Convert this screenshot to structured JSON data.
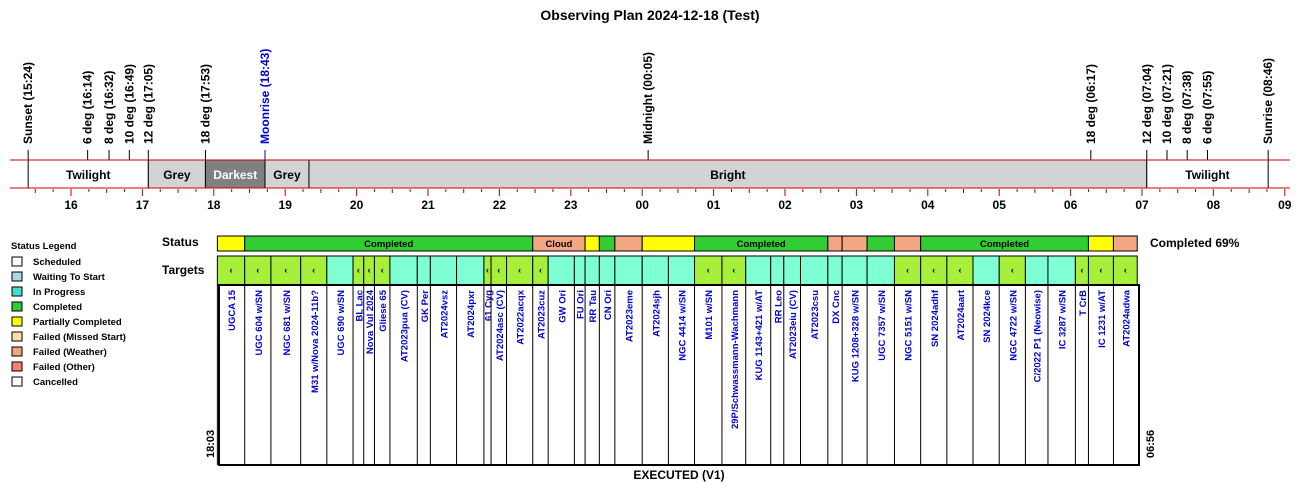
{
  "chart_data": {
    "type": "timeline",
    "title": "Observing Plan 2024-12-18 (Test)",
    "axis_hours": [
      "16",
      "17",
      "18",
      "19",
      "20",
      "21",
      "22",
      "23",
      "00",
      "01",
      "02",
      "03",
      "04",
      "05",
      "06",
      "07",
      "08",
      "09"
    ],
    "events": [
      {
        "label": "Sunset (15:24)",
        "time": 15.4,
        "color": "#000000"
      },
      {
        "label": "6 deg (16:14)",
        "time": 16.233,
        "color": "#000000"
      },
      {
        "label": "8 deg (16:32)",
        "time": 16.533,
        "color": "#000000"
      },
      {
        "label": "10 deg (16:49)",
        "time": 16.817,
        "color": "#000000"
      },
      {
        "label": "12 deg (17:05)",
        "time": 17.083,
        "color": "#000000"
      },
      {
        "label": "18 deg (17:53)",
        "time": 17.883,
        "color": "#000000"
      },
      {
        "label": "Moonrise (18:43)",
        "time": 18.717,
        "color": "#0000cc"
      },
      {
        "label": "Midnight (00:05)",
        "time": 24.083,
        "color": "#000000"
      },
      {
        "label": "18 deg (06:17)",
        "time": 30.283,
        "color": "#000000"
      },
      {
        "label": "12 deg (07:04)",
        "time": 31.067,
        "color": "#000000"
      },
      {
        "label": "10 deg (07:21)",
        "time": 31.35,
        "color": "#000000"
      },
      {
        "label": "8 deg (07:38)",
        "time": 31.633,
        "color": "#000000"
      },
      {
        "label": "6 deg (07:55)",
        "time": 31.917,
        "color": "#000000"
      },
      {
        "label": "Sunrise (08:46)",
        "time": 32.767,
        "color": "#000000"
      }
    ],
    "sky_bands": [
      {
        "label": "Twilight",
        "start": 15.4,
        "end": 17.083,
        "color": "#ffffff",
        "text_color": "#000000"
      },
      {
        "label": "Grey",
        "start": 17.083,
        "end": 17.883,
        "color": "#d3d3d3",
        "text_color": "#000000"
      },
      {
        "label": "Darkest",
        "start": 17.883,
        "end": 18.717,
        "color": "#808080",
        "text_color": "#ffffff"
      },
      {
        "label": "Grey",
        "start": 18.717,
        "end": 19.333,
        "color": "#d3d3d3",
        "text_color": "#000000"
      },
      {
        "label": "Bright",
        "start": 19.333,
        "end": 31.067,
        "color": "#d3d3d3",
        "text_color": "#000000"
      },
      {
        "label": "Twilight",
        "start": 31.067,
        "end": 32.767,
        "color": "#ffffff",
        "text_color": "#000000"
      }
    ],
    "row_labels": {
      "status": "Status",
      "targets": "Targets"
    },
    "completed_summary": "Completed 69%",
    "status_segments": [
      {
        "label": "",
        "start": 18.05,
        "end": 18.433,
        "status": "Partially Completed"
      },
      {
        "label": "Completed",
        "start": 18.433,
        "end": 22.467,
        "status": "Completed"
      },
      {
        "label": "Cloud",
        "start": 22.467,
        "end": 23.2,
        "status": "Failed (Weather)"
      },
      {
        "label": "",
        "start": 23.2,
        "end": 23.4,
        "status": "Partially Completed"
      },
      {
        "label": "",
        "start": 23.4,
        "end": 23.617,
        "status": "Completed"
      },
      {
        "label": "",
        "start": 23.617,
        "end": 24.0,
        "status": "Failed (Weather)"
      },
      {
        "label": "",
        "start": 24.0,
        "end": 24.733,
        "status": "Partially Completed"
      },
      {
        "label": "Completed",
        "start": 24.733,
        "end": 26.6,
        "status": "Completed"
      },
      {
        "label": "",
        "start": 26.6,
        "end": 26.8,
        "status": "Failed (Weather)"
      },
      {
        "label": "",
        "start": 26.8,
        "end": 27.15,
        "status": "Failed (Weather)"
      },
      {
        "label": "",
        "start": 27.15,
        "end": 27.533,
        "status": "Completed"
      },
      {
        "label": "",
        "start": 27.533,
        "end": 27.9,
        "status": "Failed (Weather)"
      },
      {
        "label": "Completed",
        "start": 27.9,
        "end": 30.25,
        "status": "Completed"
      },
      {
        "label": "",
        "start": 30.25,
        "end": 30.6,
        "status": "Partially Completed"
      },
      {
        "label": "",
        "start": 30.6,
        "end": 30.933,
        "status": "Failed (Weather)"
      }
    ],
    "targets": [
      {
        "name": "UGCA 15",
        "start": 18.05,
        "end": 18.433,
        "status": "Completed"
      },
      {
        "name": "UGC 604 w/SN",
        "start": 18.433,
        "end": 18.8,
        "status": "Completed"
      },
      {
        "name": "NGC 681 w/SN",
        "start": 18.8,
        "end": 19.217,
        "status": "Completed"
      },
      {
        "name": "M31 w/Nova 2024-11b?",
        "start": 19.217,
        "end": 19.583,
        "status": "Completed"
      },
      {
        "name": "UGC 690 w/SN",
        "start": 19.583,
        "end": 19.95,
        "status": "In Progress"
      },
      {
        "name": "BL Lac",
        "start": 19.95,
        "end": 20.1,
        "status": "Completed"
      },
      {
        "name": "Nova Vul 2024",
        "start": 20.1,
        "end": 20.25,
        "status": "Completed"
      },
      {
        "name": "Gliese 65",
        "start": 20.25,
        "end": 20.467,
        "status": "Completed"
      },
      {
        "name": "AT2023pua (CV)",
        "start": 20.467,
        "end": 20.85,
        "status": "In Progress"
      },
      {
        "name": "GK Per",
        "start": 20.85,
        "end": 21.033,
        "status": "In Progress"
      },
      {
        "name": "AT2024vsz",
        "start": 21.033,
        "end": 21.4,
        "status": "In Progress"
      },
      {
        "name": "AT2024pxr",
        "start": 21.4,
        "end": 21.783,
        "status": "In Progress"
      },
      {
        "name": "61 Cyg",
        "start": 21.783,
        "end": 21.883,
        "status": "Completed"
      },
      {
        "name": "AT2024asc (CV)",
        "start": 21.883,
        "end": 22.1,
        "status": "Completed"
      },
      {
        "name": "AT2022acqx",
        "start": 22.1,
        "end": 22.467,
        "status": "Completed"
      },
      {
        "name": "AT2023cuz",
        "start": 22.467,
        "end": 22.683,
        "status": "Completed"
      },
      {
        "name": "GW Ori",
        "start": 22.683,
        "end": 23.05,
        "status": "In Progress"
      },
      {
        "name": "FU Ori",
        "start": 23.05,
        "end": 23.2,
        "status": "In Progress"
      },
      {
        "name": "RR Tau",
        "start": 23.2,
        "end": 23.4,
        "status": "In Progress"
      },
      {
        "name": "CN Ori",
        "start": 23.4,
        "end": 23.617,
        "status": "In Progress"
      },
      {
        "name": "AT2023eme",
        "start": 23.617,
        "end": 24.0,
        "status": "In Progress"
      },
      {
        "name": "AT2024sjh",
        "start": 24.0,
        "end": 24.367,
        "status": "In Progress"
      },
      {
        "name": "NGC 4414 w/SN",
        "start": 24.367,
        "end": 24.733,
        "status": "In Progress"
      },
      {
        "name": "M101 w/SN",
        "start": 24.733,
        "end": 25.117,
        "status": "Completed"
      },
      {
        "name": "29P/Schwassmann-Wachmann",
        "start": 25.117,
        "end": 25.45,
        "status": "Completed"
      },
      {
        "name": "KUG 1143+421 w/AT",
        "start": 25.45,
        "end": 25.8,
        "status": "In Progress"
      },
      {
        "name": "RR Leo",
        "start": 25.8,
        "end": 25.983,
        "status": "In Progress"
      },
      {
        "name": "AT2023eiu (CV)",
        "start": 25.983,
        "end": 26.217,
        "status": "In Progress"
      },
      {
        "name": "AT2023csu",
        "start": 26.217,
        "end": 26.6,
        "status": "In Progress"
      },
      {
        "name": "DX Cnc",
        "start": 26.6,
        "end": 26.8,
        "status": "In Progress"
      },
      {
        "name": "KUG 1208+328 w/SN",
        "start": 26.8,
        "end": 27.15,
        "status": "In Progress"
      },
      {
        "name": "UGC 7357 w/SN",
        "start": 27.15,
        "end": 27.533,
        "status": "In Progress"
      },
      {
        "name": "NGC 5151 w/SN",
        "start": 27.533,
        "end": 27.9,
        "status": "Completed"
      },
      {
        "name": "SN 2024adhf",
        "start": 27.9,
        "end": 28.267,
        "status": "Completed"
      },
      {
        "name": "AT2024aart",
        "start": 28.267,
        "end": 28.633,
        "status": "Completed"
      },
      {
        "name": "SN 2024kce",
        "start": 28.633,
        "end": 29.0,
        "status": "In Progress"
      },
      {
        "name": "NGC 4722 w/SN",
        "start": 29.0,
        "end": 29.367,
        "status": "Completed"
      },
      {
        "name": "C/2022 P1 (Neowise)",
        "start": 29.367,
        "end": 29.683,
        "status": "In Progress"
      },
      {
        "name": "IC 3287 w/SN",
        "start": 29.683,
        "end": 30.067,
        "status": "In Progress"
      },
      {
        "name": "T CrB",
        "start": 30.067,
        "end": 30.25,
        "status": "Completed"
      },
      {
        "name": "IC 1231 w/AT",
        "start": 30.25,
        "end": 30.6,
        "status": "Completed"
      },
      {
        "name": "AT2024adwa",
        "start": 30.6,
        "end": 30.933,
        "status": "Completed"
      }
    ],
    "start_label": "18:03",
    "end_label": "06:56",
    "footer": "EXECUTED (V1)",
    "legend_title": "Status Legend",
    "legend": [
      {
        "label": "Scheduled",
        "color": "#ffffff"
      },
      {
        "label": "Waiting To Start",
        "color": "#add8e6"
      },
      {
        "label": "In Progress",
        "color": "#40e0d0"
      },
      {
        "label": "Completed",
        "color": "#32cd32"
      },
      {
        "label": "Partially Completed",
        "color": "#ffff00"
      },
      {
        "label": "Failed (Missed Start)",
        "color": "#ffdead"
      },
      {
        "label": "Failed (Weather)",
        "color": "#f4a582"
      },
      {
        "label": "Failed (Other)",
        "color": "#fa8072"
      },
      {
        "label": "Cancelled",
        "color": "#ffffff"
      }
    ],
    "status_colors": {
      "Completed": "#32cd32",
      "Partially Completed": "#ffff00",
      "Failed (Weather)": "#f4a582",
      "In Progress": "#7fffd4",
      "target_completed": "#a6f03c"
    }
  }
}
